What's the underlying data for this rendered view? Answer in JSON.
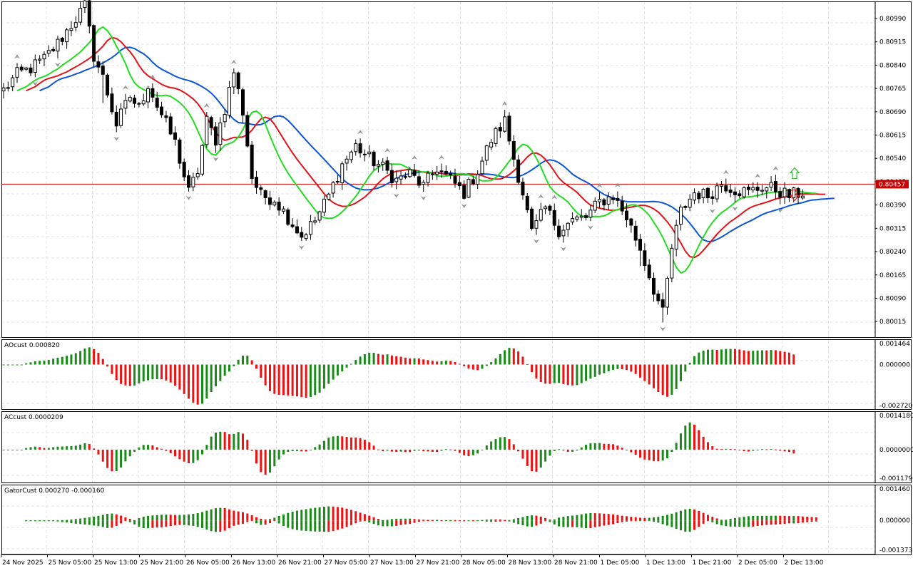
{
  "colors": {
    "bull_candle": "#ffffff",
    "bear_candle": "#000000",
    "candle_outline": "#000000",
    "jaw_line": "#0b55d6",
    "teeth_line": "#e0141a",
    "lips_line": "#22dd22",
    "price_line": "#c80000",
    "price_tag_bg": "#c80000",
    "hist_up": "#1b8a1b",
    "hist_down": "#ee1111",
    "fractal": "#9a9a9a",
    "grid": "#e3e3e3",
    "border": "#000000"
  },
  "icons": {
    "fractal_up": "fractal-up-arrow-icon",
    "fractal_down": "fractal-down-arrow-icon",
    "signal_up": "green-outline-up-arrow-icon",
    "signal_down": "red-outline-down-arrow-icon"
  },
  "chart_data": [
    {
      "type": "candlestick",
      "panel": "main",
      "title": "",
      "y_ticks": [
        "0.80990",
        "0.80915",
        "0.80840",
        "0.80765",
        "0.80690",
        "0.80615",
        "0.80540",
        "0.80465",
        "0.80390",
        "0.80315",
        "0.80240",
        "0.80165",
        "0.80090",
        "0.80015"
      ],
      "ylim": [
        0.79965,
        0.81045
      ],
      "current_price": "0.80457",
      "x_ticks": [
        "24 Nov 2025",
        "25 Nov 05:00",
        "25 Nov 13:00",
        "25 Nov 21:00",
        "26 Nov 05:00",
        "26 Nov 13:00",
        "26 Nov 21:00",
        "27 Nov 05:00",
        "27 Nov 13:00",
        "27 Nov 21:00",
        "28 Nov 05:00",
        "28 Nov 13:00",
        "28 Nov 21:00",
        "1 Dec 05:00",
        "1 Dec 13:00",
        "1 Dec 21:00",
        "2 Dec 05:00",
        "2 Dec 13:00"
      ],
      "grid": true,
      "anchors": [
        [
          0,
          0.8076
        ],
        [
          3,
          0.8081
        ],
        [
          6,
          0.8083
        ],
        [
          9,
          0.8086
        ],
        [
          12,
          0.8091
        ],
        [
          15,
          0.8097
        ],
        [
          18,
          0.8103
        ],
        [
          20,
          0.8087
        ],
        [
          22,
          0.808
        ],
        [
          25,
          0.8065
        ],
        [
          28,
          0.8074
        ],
        [
          30,
          0.807
        ],
        [
          32,
          0.8078
        ],
        [
          34,
          0.8071
        ],
        [
          36,
          0.8065
        ],
        [
          38,
          0.8059
        ],
        [
          41,
          0.8043
        ],
        [
          43,
          0.805
        ],
        [
          45,
          0.8066
        ],
        [
          47,
          0.806
        ],
        [
          49,
          0.807
        ],
        [
          51,
          0.8082
        ],
        [
          53,
          0.8069
        ],
        [
          55,
          0.8048
        ],
        [
          57,
          0.8042
        ],
        [
          60,
          0.8041
        ],
        [
          63,
          0.8035
        ],
        [
          66,
          0.8029
        ],
        [
          69,
          0.8034
        ],
        [
          72,
          0.8042
        ],
        [
          75,
          0.8052
        ],
        [
          78,
          0.8058
        ],
        [
          81,
          0.8054
        ],
        [
          84,
          0.8051
        ],
        [
          87,
          0.8047
        ],
        [
          90,
          0.8049
        ],
        [
          93,
          0.8045
        ],
        [
          96,
          0.8051
        ],
        [
          99,
          0.8047
        ],
        [
          102,
          0.8043
        ],
        [
          105,
          0.805
        ],
        [
          108,
          0.806
        ],
        [
          111,
          0.8066
        ],
        [
          113,
          0.8054
        ],
        [
          115,
          0.8043
        ],
        [
          117,
          0.803
        ],
        [
          120,
          0.8038
        ],
        [
          123,
          0.8031
        ],
        [
          126,
          0.8034
        ],
        [
          129,
          0.8035
        ],
        [
          132,
          0.804
        ],
        [
          135,
          0.8042
        ],
        [
          138,
          0.8035
        ],
        [
          141,
          0.8025
        ],
        [
          144,
          0.8012
        ],
        [
          146,
          0.8004
        ],
        [
          148,
          0.8025
        ],
        [
          150,
          0.8037
        ],
        [
          153,
          0.8043
        ],
        [
          156,
          0.8042
        ],
        [
          159,
          0.8046
        ],
        [
          162,
          0.8044
        ],
        [
          165,
          0.8043
        ],
        [
          168,
          0.8045
        ],
        [
          171,
          0.8044
        ],
        [
          174,
          0.8042
        ],
        [
          177,
          0.8043
        ]
      ],
      "indicators": {
        "jaw": {
          "period": 13,
          "shift": 8
        },
        "teeth": {
          "period": 8,
          "shift": 5
        },
        "lips": {
          "period": 5,
          "shift": 3
        }
      }
    },
    {
      "type": "bar",
      "panel": "ao",
      "title": "AOcust 0.000820",
      "y_ticks": [
        "0.001464",
        "0.000000",
        "-0.002720"
      ],
      "ylim": [
        -0.00292,
        0.00166
      ]
    },
    {
      "type": "bar",
      "panel": "ac",
      "title": "ACcust 0.0000209",
      "y_ticks": [
        "0.0014180",
        "0.0000000",
        "-0.0011790"
      ],
      "ylim": [
        -0.00136,
        0.00159
      ]
    },
    {
      "type": "bar",
      "panel": "gator",
      "title": "GatorCust 0.000270 -0.000160",
      "y_ticks": [
        "0.001460",
        "0.000000",
        "-0.001373"
      ],
      "ylim": [
        -0.00158,
        0.00166
      ]
    }
  ]
}
